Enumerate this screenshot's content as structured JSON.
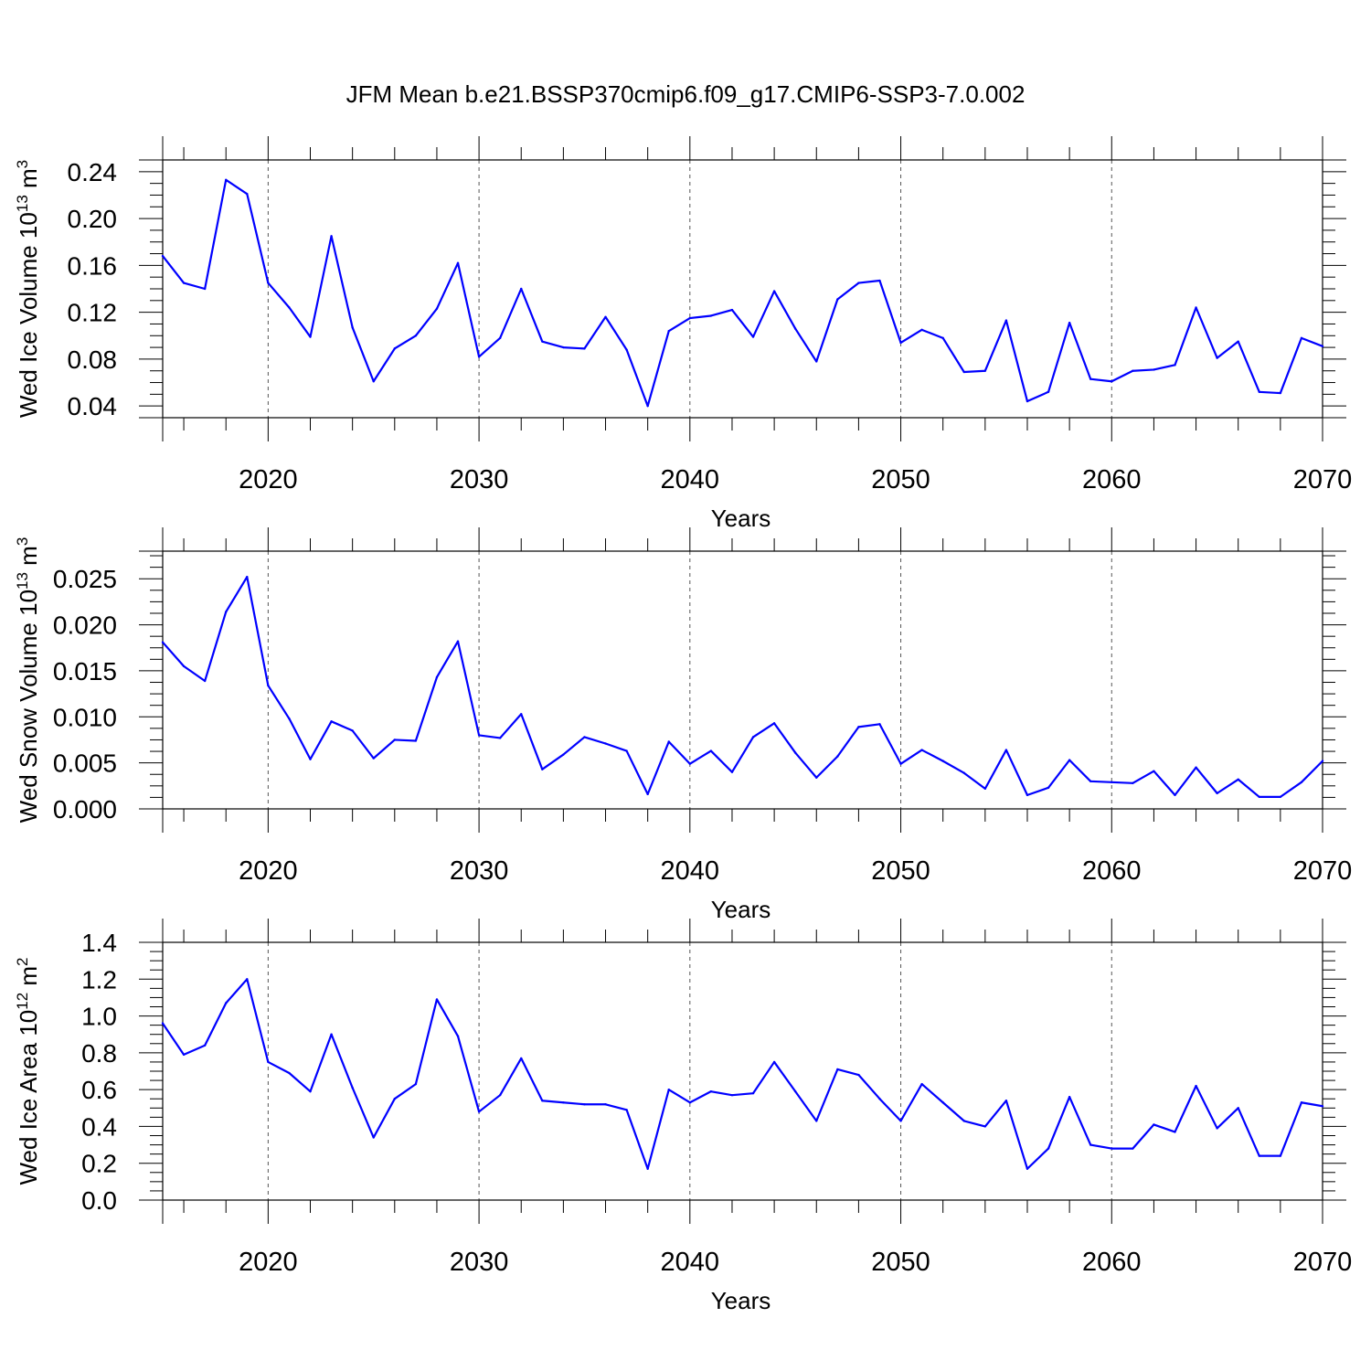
{
  "title": "JFM Mean b.e21.BSSP370cmip6.f09_g17.CMIP6-SSP3-7.0.002",
  "colors": {
    "line": "#0000ff",
    "axis": "#000000",
    "grid": "#555555"
  },
  "chart_data": [
    {
      "type": "line",
      "xlabel": "Years",
      "ylabel": "Wed Ice Volume 10",
      "ylabel_exp": "13",
      "ylabel_unit": " m",
      "ylabel_unit_exp": "3",
      "xlim": [
        2015,
        2070
      ],
      "ylim": [
        0.03,
        0.25
      ],
      "yticks": [
        0.04,
        0.08,
        0.12,
        0.16,
        0.2,
        0.24
      ],
      "ytick_labels": [
        "0.04",
        "0.08",
        "0.12",
        "0.16",
        "0.20",
        "0.24"
      ],
      "xticks": [
        2020,
        2030,
        2040,
        2050,
        2060,
        2070
      ],
      "xtick_labels": [
        "2020",
        "2030",
        "2040",
        "2050",
        "2060",
        "2070"
      ],
      "grid": "vertical-dashed",
      "x": [
        2015,
        2016,
        2017,
        2018,
        2019,
        2020,
        2021,
        2022,
        2023,
        2024,
        2025,
        2026,
        2027,
        2028,
        2029,
        2030,
        2031,
        2032,
        2033,
        2034,
        2035,
        2036,
        2037,
        2038,
        2039,
        2040,
        2041,
        2042,
        2043,
        2044,
        2045,
        2046,
        2047,
        2048,
        2049,
        2050,
        2051,
        2052,
        2053,
        2054,
        2055,
        2056,
        2057,
        2058,
        2059,
        2060,
        2061,
        2062,
        2063,
        2064,
        2065,
        2066,
        2067,
        2068,
        2069,
        2070
      ],
      "values": [
        0.168,
        0.145,
        0.14,
        0.233,
        0.221,
        0.145,
        0.124,
        0.099,
        0.185,
        0.107,
        0.061,
        0.089,
        0.1,
        0.123,
        0.162,
        0.082,
        0.098,
        0.14,
        0.095,
        0.09,
        0.089,
        0.116,
        0.088,
        0.04,
        0.104,
        0.115,
        0.117,
        0.122,
        0.099,
        0.138,
        0.106,
        0.078,
        0.131,
        0.145,
        0.147,
        0.094,
        0.105,
        0.098,
        0.069,
        0.07,
        0.113,
        0.044,
        0.052,
        0.111,
        0.063,
        0.061,
        0.07,
        0.071,
        0.075,
        0.124,
        0.081,
        0.095,
        0.052,
        0.051,
        0.098,
        0.091
      ]
    },
    {
      "type": "line",
      "xlabel": "Years",
      "ylabel": "Wed Snow Volume 10",
      "ylabel_exp": "13",
      "ylabel_unit": " m",
      "ylabel_unit_exp": "3",
      "xlim": [
        2015,
        2070
      ],
      "ylim": [
        0.0,
        0.028
      ],
      "yticks": [
        0.0,
        0.005,
        0.01,
        0.015,
        0.02,
        0.025
      ],
      "ytick_labels": [
        "0.000",
        "0.005",
        "0.010",
        "0.015",
        "0.020",
        "0.025"
      ],
      "xticks": [
        2020,
        2030,
        2040,
        2050,
        2060,
        2070
      ],
      "xtick_labels": [
        "2020",
        "2030",
        "2040",
        "2050",
        "2060",
        "2070"
      ],
      "grid": "vertical-dashed",
      "x": [
        2015,
        2016,
        2017,
        2018,
        2019,
        2020,
        2021,
        2022,
        2023,
        2024,
        2025,
        2026,
        2027,
        2028,
        2029,
        2030,
        2031,
        2032,
        2033,
        2034,
        2035,
        2036,
        2037,
        2038,
        2039,
        2040,
        2041,
        2042,
        2043,
        2044,
        2045,
        2046,
        2047,
        2048,
        2049,
        2050,
        2051,
        2052,
        2053,
        2054,
        2055,
        2056,
        2057,
        2058,
        2059,
        2060,
        2061,
        2062,
        2063,
        2064,
        2065,
        2066,
        2067,
        2068,
        2069,
        2070
      ],
      "values": [
        0.0181,
        0.0155,
        0.0139,
        0.0214,
        0.0252,
        0.0134,
        0.0098,
        0.0054,
        0.0095,
        0.0085,
        0.0055,
        0.0075,
        0.0074,
        0.0143,
        0.0182,
        0.008,
        0.0077,
        0.0103,
        0.0043,
        0.0059,
        0.0078,
        0.0071,
        0.0063,
        0.0016,
        0.0073,
        0.0049,
        0.0063,
        0.004,
        0.0078,
        0.0093,
        0.0061,
        0.0034,
        0.0057,
        0.0089,
        0.0092,
        0.0049,
        0.0064,
        0.0052,
        0.0039,
        0.0022,
        0.0064,
        0.0015,
        0.0023,
        0.0053,
        0.003,
        0.0029,
        0.0028,
        0.0041,
        0.0015,
        0.0045,
        0.0017,
        0.0032,
        0.0013,
        0.0013,
        0.0029,
        0.0052
      ]
    },
    {
      "type": "line",
      "xlabel": "Years",
      "ylabel": "Wed Ice Area 10",
      "ylabel_exp": "12",
      "ylabel_unit": " m",
      "ylabel_unit_exp": "2",
      "xlim": [
        2015,
        2070
      ],
      "ylim": [
        0.0,
        1.4
      ],
      "yticks": [
        0.0,
        0.2,
        0.4,
        0.6,
        0.8,
        1.0,
        1.2,
        1.4
      ],
      "ytick_labels": [
        "0.0",
        "0.2",
        "0.4",
        "0.6",
        "0.8",
        "1.0",
        "1.2",
        "1.4"
      ],
      "xticks": [
        2020,
        2030,
        2040,
        2050,
        2060,
        2070
      ],
      "xtick_labels": [
        "2020",
        "2030",
        "2040",
        "2050",
        "2060",
        "2070"
      ],
      "grid": "vertical-dashed",
      "x": [
        2015,
        2016,
        2017,
        2018,
        2019,
        2020,
        2021,
        2022,
        2023,
        2024,
        2025,
        2026,
        2027,
        2028,
        2029,
        2030,
        2031,
        2032,
        2033,
        2034,
        2035,
        2036,
        2037,
        2038,
        2039,
        2040,
        2041,
        2042,
        2043,
        2044,
        2045,
        2046,
        2047,
        2048,
        2049,
        2050,
        2051,
        2052,
        2053,
        2054,
        2055,
        2056,
        2057,
        2058,
        2059,
        2060,
        2061,
        2062,
        2063,
        2064,
        2065,
        2066,
        2067,
        2068,
        2069,
        2070
      ],
      "values": [
        0.96,
        0.79,
        0.84,
        1.07,
        1.2,
        0.75,
        0.69,
        0.59,
        0.9,
        0.61,
        0.34,
        0.55,
        0.63,
        1.09,
        0.89,
        0.48,
        0.57,
        0.77,
        0.54,
        0.53,
        0.52,
        0.52,
        0.49,
        0.17,
        0.6,
        0.53,
        0.59,
        0.57,
        0.58,
        0.75,
        0.59,
        0.43,
        0.71,
        0.68,
        0.55,
        0.43,
        0.63,
        0.53,
        0.43,
        0.4,
        0.54,
        0.17,
        0.28,
        0.56,
        0.3,
        0.28,
        0.28,
        0.41,
        0.37,
        0.62,
        0.39,
        0.5,
        0.24,
        0.24,
        0.53,
        0.51
      ]
    }
  ]
}
